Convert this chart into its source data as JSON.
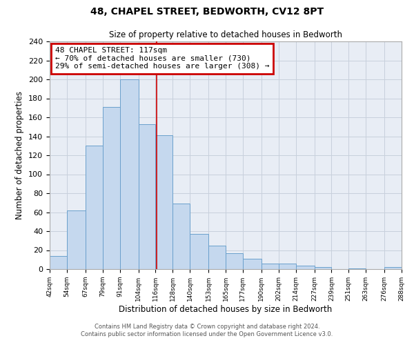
{
  "title": "48, CHAPEL STREET, BEDWORTH, CV12 8PT",
  "subtitle": "Size of property relative to detached houses in Bedworth",
  "xlabel": "Distribution of detached houses by size in Bedworth",
  "ylabel": "Number of detached properties",
  "bin_edges": [
    42,
    54,
    67,
    79,
    91,
    104,
    116,
    128,
    140,
    153,
    165,
    177,
    190,
    202,
    214,
    227,
    239,
    251,
    263,
    276,
    288
  ],
  "bar_values": [
    14,
    62,
    130,
    171,
    200,
    153,
    141,
    69,
    37,
    25,
    17,
    11,
    6,
    6,
    4,
    2,
    0,
    1,
    0,
    2
  ],
  "bar_color": "#c5d8ee",
  "bar_edge_color": "#6aa0cc",
  "background_color": "#e8edf5",
  "grid_color": "#c8d0dc",
  "property_line_x": 117,
  "property_line_color": "#cc0000",
  "annotation_title": "48 CHAPEL STREET: 117sqm",
  "annotation_line1": "← 70% of detached houses are smaller (730)",
  "annotation_line2": "29% of semi-detached houses are larger (308) →",
  "annotation_box_color": "#cc0000",
  "ylim": [
    0,
    240
  ],
  "yticks": [
    0,
    20,
    40,
    60,
    80,
    100,
    120,
    140,
    160,
    180,
    200,
    220,
    240
  ],
  "footer_line1": "Contains HM Land Registry data © Crown copyright and database right 2024.",
  "footer_line2": "Contains public sector information licensed under the Open Government Licence v3.0."
}
